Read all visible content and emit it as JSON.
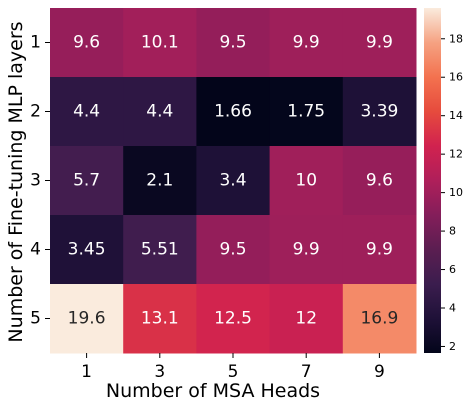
{
  "chart_data": {
    "type": "heatmap",
    "colormap": "rocket",
    "x": [
      1,
      3,
      5,
      7,
      9
    ],
    "y": [
      1,
      2,
      3,
      4,
      5
    ],
    "xlabel": "Number of MSA Heads",
    "ylabel": "Number of Fine-tuning MLP layers",
    "values": [
      [
        9.6,
        10.1,
        9.5,
        9.9,
        9.9
      ],
      [
        4.4,
        4.4,
        1.66,
        1.75,
        3.39
      ],
      [
        5.7,
        2.1,
        3.4,
        10,
        9.6
      ],
      [
        3.45,
        5.51,
        9.5,
        9.9,
        9.9
      ],
      [
        19.6,
        13.1,
        12.5,
        12,
        16.9
      ]
    ],
    "value_labels": [
      [
        "9.6",
        "10.1",
        "9.5",
        "9.9",
        "9.9"
      ],
      [
        "4.4",
        "4.4",
        "1.66",
        "1.75",
        "3.39"
      ],
      [
        "5.7",
        "2.1",
        "3.4",
        "10",
        "9.6"
      ],
      [
        "3.45",
        "5.51",
        "9.5",
        "9.9",
        "9.9"
      ],
      [
        "19.6",
        "13.1",
        "12.5",
        "12",
        "16.9"
      ]
    ],
    "colorbar": {
      "range": [
        1.66,
        19.6
      ],
      "ticks": [
        2,
        4,
        6,
        8,
        10,
        12,
        14,
        16,
        18
      ]
    }
  }
}
